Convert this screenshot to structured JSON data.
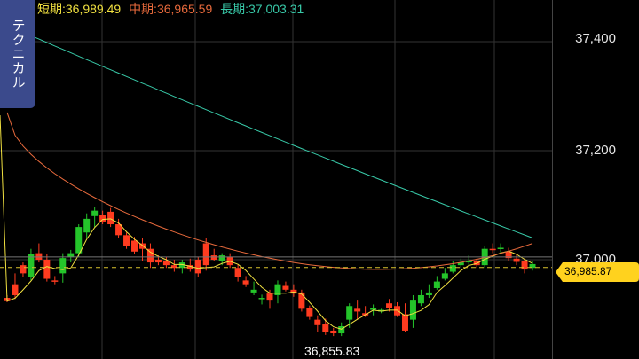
{
  "legend": {
    "short": "短期:36,989.49",
    "mid": "中期:36,965.59",
    "long": "長期:37,003.31"
  },
  "side_tab": {
    "label": "テクニカル"
  },
  "y_axis": {
    "labels": [
      "37,400",
      "37,200",
      "37,000"
    ]
  },
  "current_price": "36,985.87",
  "low_annotation": "36,855.83",
  "colors": {
    "background": "#000000",
    "up_candle": "#24c52a",
    "down_candle": "#ff3b1f",
    "short_ma": "#f0e040",
    "mid_ma": "#e86a3c",
    "long_ma": "#38c9a8",
    "price_tag": "#ffd21e",
    "tab": "#3b4a8c"
  },
  "chart_data": {
    "type": "candlestick",
    "ylim": [
      36840,
      37450
    ],
    "y_ticks": [
      37000,
      37200,
      37400
    ],
    "current_price": 36985.87,
    "low": 36855.83,
    "candles": [
      [
        36930,
        36935,
        36922,
        36924
      ],
      [
        36955,
        36975,
        36928,
        36935
      ],
      [
        36990,
        36995,
        36968,
        36975
      ],
      [
        36968,
        37020,
        36962,
        37010
      ],
      [
        37012,
        37030,
        36995,
        37000
      ],
      [
        37000,
        37010,
        36960,
        36965
      ],
      [
        36962,
        36970,
        36955,
        36960
      ],
      [
        36975,
        37012,
        36958,
        37003
      ],
      [
        37005,
        37018,
        36995,
        37012
      ],
      [
        37012,
        37065,
        37005,
        37060
      ],
      [
        37050,
        37085,
        37040,
        37075
      ],
      [
        37080,
        37096,
        37060,
        37090
      ],
      [
        37082,
        37090,
        37065,
        37070
      ],
      [
        37088,
        37095,
        37060,
        37065
      ],
      [
        37065,
        37075,
        37040,
        37045
      ],
      [
        37045,
        37050,
        37020,
        37025
      ],
      [
        37035,
        37042,
        37010,
        37015
      ],
      [
        37030,
        37040,
        36998,
        37020
      ],
      [
        37020,
        37030,
        36985,
        36995
      ],
      [
        37000,
        37008,
        36990,
        36995
      ],
      [
        36998,
        37005,
        36985,
        36990
      ],
      [
        36990,
        37000,
        36978,
        36985
      ],
      [
        36985,
        37000,
        36975,
        36995
      ],
      [
        36990,
        37002,
        36978,
        36982
      ],
      [
        37000,
        37005,
        36968,
        36975
      ],
      [
        37030,
        37040,
        36980,
        36990
      ],
      [
        37008,
        37020,
        36998,
        37000
      ],
      [
        36998,
        37012,
        36990,
        37008
      ],
      [
        37005,
        37012,
        36985,
        36990
      ],
      [
        36985,
        36992,
        36960,
        36968
      ],
      [
        36962,
        36970,
        36950,
        36955
      ],
      [
        36940,
        36960,
        36935,
        36945
      ],
      [
        36928,
        36936,
        36918,
        36930
      ],
      [
        36938,
        36945,
        36910,
        36925
      ],
      [
        36935,
        36962,
        36920,
        36955
      ],
      [
        36952,
        36960,
        36942,
        36945
      ],
      [
        36945,
        36955,
        36932,
        36938
      ],
      [
        36940,
        36945,
        36905,
        36910
      ],
      [
        36912,
        36916,
        36890,
        36895
      ],
      [
        36890,
        36898,
        36868,
        36880
      ],
      [
        36882,
        36892,
        36862,
        36868
      ],
      [
        36870,
        36875,
        36860,
        36865
      ],
      [
        36865,
        36885,
        36860,
        36878
      ],
      [
        36890,
        36920,
        36875,
        36915
      ],
      [
        36910,
        36925,
        36890,
        36905
      ],
      [
        36902,
        36915,
        36895,
        36898
      ],
      [
        36908,
        36918,
        36898,
        36912
      ],
      [
        36905,
        36910,
        36902,
        36908
      ],
      [
        36920,
        36928,
        36905,
        36912
      ],
      [
        36915,
        36922,
        36895,
        36898
      ],
      [
        36900,
        36920,
        36868,
        36870
      ],
      [
        36890,
        36935,
        36875,
        36925
      ],
      [
        36920,
        36945,
        36915,
        36935
      ],
      [
        36935,
        36955,
        36930,
        36940
      ],
      [
        36948,
        36970,
        36945,
        36960
      ],
      [
        36965,
        36985,
        36962,
        36975
      ],
      [
        36978,
        36998,
        36975,
        36990
      ],
      [
        36990,
        37002,
        36985,
        36995
      ],
      [
        36995,
        37008,
        36990,
        36998
      ],
      [
        36998,
        37002,
        36985,
        36990
      ],
      [
        36990,
        37025,
        36985,
        37020
      ],
      [
        37020,
        37030,
        37012,
        37018
      ],
      [
        37020,
        37030,
        37010,
        37022
      ],
      [
        37015,
        37022,
        36998,
        37003
      ],
      [
        37002,
        37010,
        36990,
        36996
      ],
      [
        36998,
        37002,
        36975,
        36982
      ],
      [
        36985,
        36998,
        36980,
        36992
      ]
    ],
    "series": [
      {
        "name": "短期",
        "value": 36989.49
      },
      {
        "name": "中期",
        "value": 36965.59
      },
      {
        "name": "長期",
        "value": 37003.31
      }
    ]
  }
}
